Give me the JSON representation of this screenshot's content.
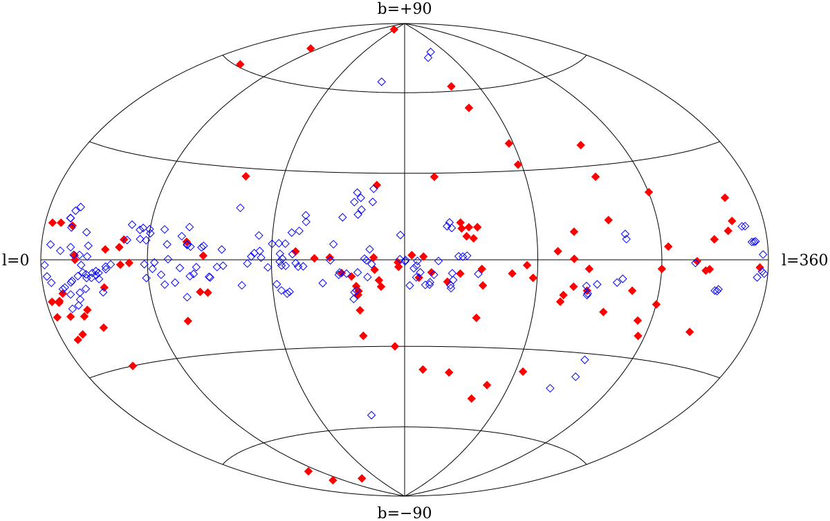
{
  "chart_data": {
    "type": "scatter",
    "projection": "aitoff-hammer",
    "labels": {
      "top": "b=+90",
      "bottom": "b=−90",
      "left": "l=0",
      "right": "l=360"
    },
    "xlim": [
      0,
      360
    ],
    "ylim": [
      -90,
      90
    ],
    "grid": true,
    "series": [
      {
        "marker": "diamond-filled",
        "color": "#ff0000",
        "points": [
          [
            3.4,
            -10.4
          ],
          [
            3.5,
            -14.3
          ],
          [
            4.5,
            9.2
          ],
          [
            7.6,
            -10.8
          ],
          [
            8.1,
            -10.4
          ],
          [
            9.7,
            -20.6
          ],
          [
            9.7,
            9.4
          ],
          [
            11.2,
            -8.6
          ],
          [
            11.8,
            -14.6
          ],
          [
            14.3,
            -19.5
          ],
          [
            16.9,
            8.9
          ],
          [
            20.0,
            -15.0
          ],
          [
            20.3,
            1.2
          ],
          [
            20.6,
            0.0
          ],
          [
            23.1,
            -13.4
          ],
          [
            26.4,
            60.7
          ],
          [
            28.5,
            -18.6
          ],
          [
            32.2,
            -30.0
          ],
          [
            35.8,
            -7.7
          ],
          [
            37.5,
            2.9
          ],
          [
            45.0,
            3.6
          ],
          [
            45.8,
            -1.4
          ],
          [
            47.1,
            5.8
          ],
          [
            47.6,
            -77.0
          ],
          [
            49.3,
            -72.0
          ],
          [
            50.5,
            -0.9
          ],
          [
            51.9,
            72.2
          ],
          [
            75.4,
            -19.0
          ],
          [
            79.3,
            5.6
          ],
          [
            85.1,
            -10.1
          ],
          [
            87.8,
            1.3
          ],
          [
            88.8,
            -10.4
          ],
          [
            92.5,
            -79.6
          ],
          [
            100.8,
            27.3
          ],
          [
            117.6,
            86.7
          ],
          [
            131.0,
            2.8
          ],
          [
            139.6,
            0.5
          ],
          [
            146.5,
            0.8
          ],
          [
            151.8,
            -4.5
          ],
          [
            156.2,
            -5.7
          ],
          [
            158.2,
            -9.0
          ],
          [
            158.9,
            -12.0
          ],
          [
            159.2,
            -10.7
          ],
          [
            159.4,
            -17.3
          ],
          [
            160.0,
            -26.2
          ],
          [
            166.2,
            0.8
          ],
          [
            166.6,
            -3.4
          ],
          [
            166.6,
            25.8
          ],
          [
            168.5,
            -7.0
          ],
          [
            169.4,
            -9.2
          ],
          [
            175.2,
            -30.0
          ],
          [
            177.0,
            -0.9
          ],
          [
            177.3,
            -2.4
          ],
          [
            183.2,
            1.6
          ],
          [
            186.4,
            -6.1
          ],
          [
            188.4,
            1.1
          ],
          [
            189.8,
            -38.3
          ],
          [
            192.0,
            -4.3
          ],
          [
            194.6,
            28.7
          ],
          [
            199.2,
            -7.5
          ],
          [
            204.1,
            -39.2
          ],
          [
            204.9,
            -4.7
          ],
          [
            205.4,
            12.7
          ],
          [
            205.8,
            10.7
          ],
          [
            207.9,
            8.0
          ],
          [
            209.1,
            11.1
          ],
          [
            211.0,
            7.3
          ],
          [
            213.0,
            11.1
          ],
          [
            213.6,
            -19.8
          ],
          [
            214.6,
            -3.1
          ],
          [
            215.3,
            -8.7
          ],
          [
            218.2,
            61.9
          ],
          [
            221.3,
            -48.4
          ],
          [
            223.3,
            53.3
          ],
          [
            227.3,
            -43.2
          ],
          [
            228.4,
            -4.6
          ],
          [
            235.1,
            -1.8
          ],
          [
            237.6,
            39.6
          ],
          [
            238.1,
            -6.0
          ],
          [
            238.1,
            32.1
          ],
          [
            244.2,
            -37.7
          ],
          [
            249.4,
            2.8
          ],
          [
            252.1,
            -13.7
          ],
          [
            253.1,
            -11.5
          ],
          [
            257.0,
            0.3
          ],
          [
            257.4,
            -8.7
          ],
          [
            257.7,
            9.1
          ],
          [
            264.1,
            -9.9
          ],
          [
            264.2,
            -2.9
          ],
          [
            274.2,
            -16.5
          ],
          [
            275.3,
            12.5
          ],
          [
            275.7,
            26.4
          ],
          [
            277.0,
            36.9
          ],
          [
            286.3,
            -9.5
          ],
          [
            293.0,
            -18.5
          ],
          [
            296.4,
            -23.1
          ],
          [
            300.1,
            -13.3
          ],
          [
            300.1,
            -2.7
          ],
          [
            300.2,
            20.3
          ],
          [
            303.6,
            3.9
          ],
          [
            318.6,
            -0.4
          ],
          [
            323.5,
            -3.0
          ],
          [
            323.6,
            -20.3
          ],
          [
            325.6,
            -2.6
          ],
          [
            328.8,
            5.6
          ],
          [
            337.4,
            7.7
          ],
          [
            340.9,
            10.2
          ],
          [
            341.3,
            16.4
          ],
          [
            354.8,
            -1.9
          ]
        ]
      },
      {
        "marker": "diamond-open",
        "color": "#0000ff",
        "points": [
          [
            2.3,
            -1.3
          ],
          [
            3.3,
            -4.1
          ],
          [
            5.5,
            -5.7
          ],
          [
            5.6,
            3.8
          ],
          [
            11.8,
            2.3
          ],
          [
            11.8,
            -7.5
          ],
          [
            13.2,
            -7.1
          ],
          [
            14.6,
            -12.7
          ],
          [
            14.6,
            10.8
          ],
          [
            14.8,
            10.8
          ],
          [
            15.8,
            -9.0
          ],
          [
            16.4,
            12.8
          ],
          [
            16.6,
            8.4
          ],
          [
            17.3,
            -5.9
          ],
          [
            17.8,
            3.3
          ],
          [
            18.1,
            -5.5
          ],
          [
            18.7,
            13.9
          ],
          [
            18.8,
            -12.0
          ],
          [
            19.8,
            1.3
          ],
          [
            20.7,
            -10.5
          ],
          [
            21.5,
            -8.7
          ],
          [
            21.8,
            -4.3
          ],
          [
            23.2,
            1.3
          ],
          [
            24.1,
            -1.4
          ],
          [
            24.8,
            -3.4
          ],
          [
            25.3,
            -7.8
          ],
          [
            25.9,
            7.4
          ],
          [
            26.6,
            -3.9
          ],
          [
            26.7,
            -4.9
          ],
          [
            27.6,
            0.9
          ],
          [
            27.9,
            3.8
          ],
          [
            29.4,
            -4.9
          ],
          [
            30.2,
            -3.6
          ],
          [
            32.3,
            -3.1
          ],
          [
            32.2,
            -4.2
          ],
          [
            33.6,
            -5.3
          ],
          [
            33.7,
            -3.6
          ],
          [
            34.7,
            -9.0
          ],
          [
            37.8,
            -1.9
          ],
          [
            37.9,
            -2.6
          ],
          [
            40.6,
            -1.3
          ],
          [
            48.8,
            5.7
          ],
          [
            50.1,
            10.2
          ],
          [
            54.8,
            8.8
          ],
          [
            55.6,
            6.1
          ],
          [
            56.3,
            9.4
          ],
          [
            58.4,
            -1.3
          ],
          [
            58.8,
            5.8
          ],
          [
            59.0,
            -5.4
          ],
          [
            59.8,
            9.1
          ],
          [
            60.5,
            7.9
          ],
          [
            62.5,
            -2.7
          ],
          [
            63.6,
            -0.8
          ],
          [
            66.7,
            -4.5
          ],
          [
            67.5,
            9.2
          ],
          [
            68.0,
            -7.5
          ],
          [
            69.7,
            4.7
          ],
          [
            70.5,
            0.2
          ],
          [
            73.3,
            -7.0
          ],
          [
            76.3,
            -2.5
          ],
          [
            76.6,
            7.3
          ],
          [
            78.2,
            -11.6
          ],
          [
            79.7,
            4.8
          ],
          [
            79.7,
            4.6
          ],
          [
            79.8,
            10.2
          ],
          [
            81.0,
            -5.1
          ],
          [
            81.4,
            4.1
          ],
          [
            82.9,
            -4.4
          ],
          [
            84.4,
            -2.3
          ],
          [
            86.8,
            3.9
          ],
          [
            87.8,
            4.4
          ],
          [
            90.3,
            -5.4
          ],
          [
            90.8,
            -5.6
          ],
          [
            94.4,
            -2.3
          ],
          [
            96.6,
            3.3
          ],
          [
            97.3,
            -1.9
          ],
          [
            102.8,
            16.9
          ],
          [
            105.6,
            -8.3
          ],
          [
            108.8,
            -1.2
          ],
          [
            110.6,
            1.1
          ],
          [
            112.0,
            2.2
          ],
          [
            113.7,
            8.0
          ],
          [
            114.5,
            2.9
          ],
          [
            115.2,
            0.7
          ],
          [
            118.3,
            -2.5
          ],
          [
            120.1,
            5.3
          ],
          [
            122.0,
            -8.1
          ],
          [
            123.2,
            5.5
          ],
          [
            123.8,
            -0.6
          ],
          [
            123.9,
            2.0
          ],
          [
            123.9,
            -10.2
          ],
          [
            124.6,
            -1.9
          ],
          [
            125.0,
            0.4
          ],
          [
            126.2,
            5.4
          ],
          [
            126.4,
            -11.3
          ],
          [
            126.5,
            -2.0
          ],
          [
            127.6,
            -10.7
          ],
          [
            128.8,
            9.1
          ],
          [
            129.6,
            1.9
          ],
          [
            131.1,
            -1.1
          ],
          [
            132.2,
            -2.3
          ],
          [
            132.2,
            9.7
          ],
          [
            134.5,
            -2.2
          ],
          [
            134.5,
            15.0
          ],
          [
            135.0,
            12.8
          ],
          [
            143.1,
            -7.9
          ],
          [
            146.8,
            -0.2
          ],
          [
            148.1,
            5.3
          ],
          [
            150.5,
            -5.1
          ],
          [
            150.9,
            -4.3
          ],
          [
            151.6,
            14.5
          ],
          [
            154.0,
            -4.7
          ],
          [
            156.5,
            19.8
          ],
          [
            156.8,
            -13.4
          ],
          [
            157.0,
            -55.2
          ],
          [
            157.3,
            -11.1
          ],
          [
            157.5,
            23.1
          ],
          [
            158.3,
            -10.5
          ],
          [
            158.6,
            15.5
          ],
          [
            159.0,
            -4.3
          ],
          [
            159.4,
            21.3
          ],
          [
            160.0,
            64.2
          ],
          [
            160.1,
            17.2
          ],
          [
            162.1,
            0.4
          ],
          [
            163.0,
            -0.2
          ],
          [
            163.4,
            -5.9
          ],
          [
            164.4,
            3.6
          ],
          [
            165.1,
            19.9
          ],
          [
            165.2,
            24.5
          ],
          [
            165.3,
            -1.5
          ],
          [
            177.9,
            0.2
          ],
          [
            178.1,
            8.5
          ],
          [
            180.2,
            -0.5
          ],
          [
            180.4,
            -0.1
          ],
          [
            182.3,
            -8.8
          ],
          [
            184.1,
            -2.9
          ],
          [
            185.2,
            -6.0
          ],
          [
            185.3,
            -2.0
          ],
          [
            185.7,
            -0.4
          ],
          [
            187.0,
            -4.3
          ],
          [
            189.3,
            -8.6
          ],
          [
            191.2,
            -8.5
          ],
          [
            191.4,
            -7.7
          ],
          [
            193.1,
            -5.1
          ],
          [
            195.1,
            -0.4
          ],
          [
            199.2,
            11.5
          ],
          [
            200.4,
            12.8
          ],
          [
            200.6,
            -8.7
          ],
          [
            200.9,
            -9.7
          ],
          [
            201.3,
            10.9
          ],
          [
            201.3,
            -4.6
          ],
          [
            201.8,
            -6.9
          ],
          [
            204.1,
            1.2
          ],
          [
            206.0,
            1.1
          ],
          [
            207.9,
            1.4
          ],
          [
            210.8,
            74.1
          ],
          [
            213.0,
            -4.8
          ],
          [
            219.3,
            76.4
          ],
          [
            263.5,
            -8.4
          ],
          [
            264.4,
            -11.3
          ],
          [
            264.6,
            -10.8
          ],
          [
            264.8,
            -42.5
          ],
          [
            268.6,
            -7.8
          ],
          [
            274.4,
            -32.1
          ],
          [
            274.9,
            -37.8
          ],
          [
            278.2,
            -7.1
          ],
          [
            280.8,
            -5.9
          ],
          [
            282.4,
            8.0
          ],
          [
            282.7,
            6.4
          ],
          [
            317.7,
            -0.9
          ],
          [
            330.0,
            -8.4
          ],
          [
            331.3,
            -8.5
          ],
          [
            331.9,
            -8.0
          ],
          [
            346.0,
            8.6
          ],
          [
            347.9,
            8.6
          ],
          [
            350.4,
            4.5
          ],
          [
            351.7,
            4.5
          ],
          [
            352.7,
            4.6
          ],
          [
            353.6,
            -4.4
          ],
          [
            356.3,
            -2.9
          ],
          [
            356.7,
            1.3
          ],
          [
            357.7,
            -3.4
          ]
        ]
      }
    ]
  }
}
